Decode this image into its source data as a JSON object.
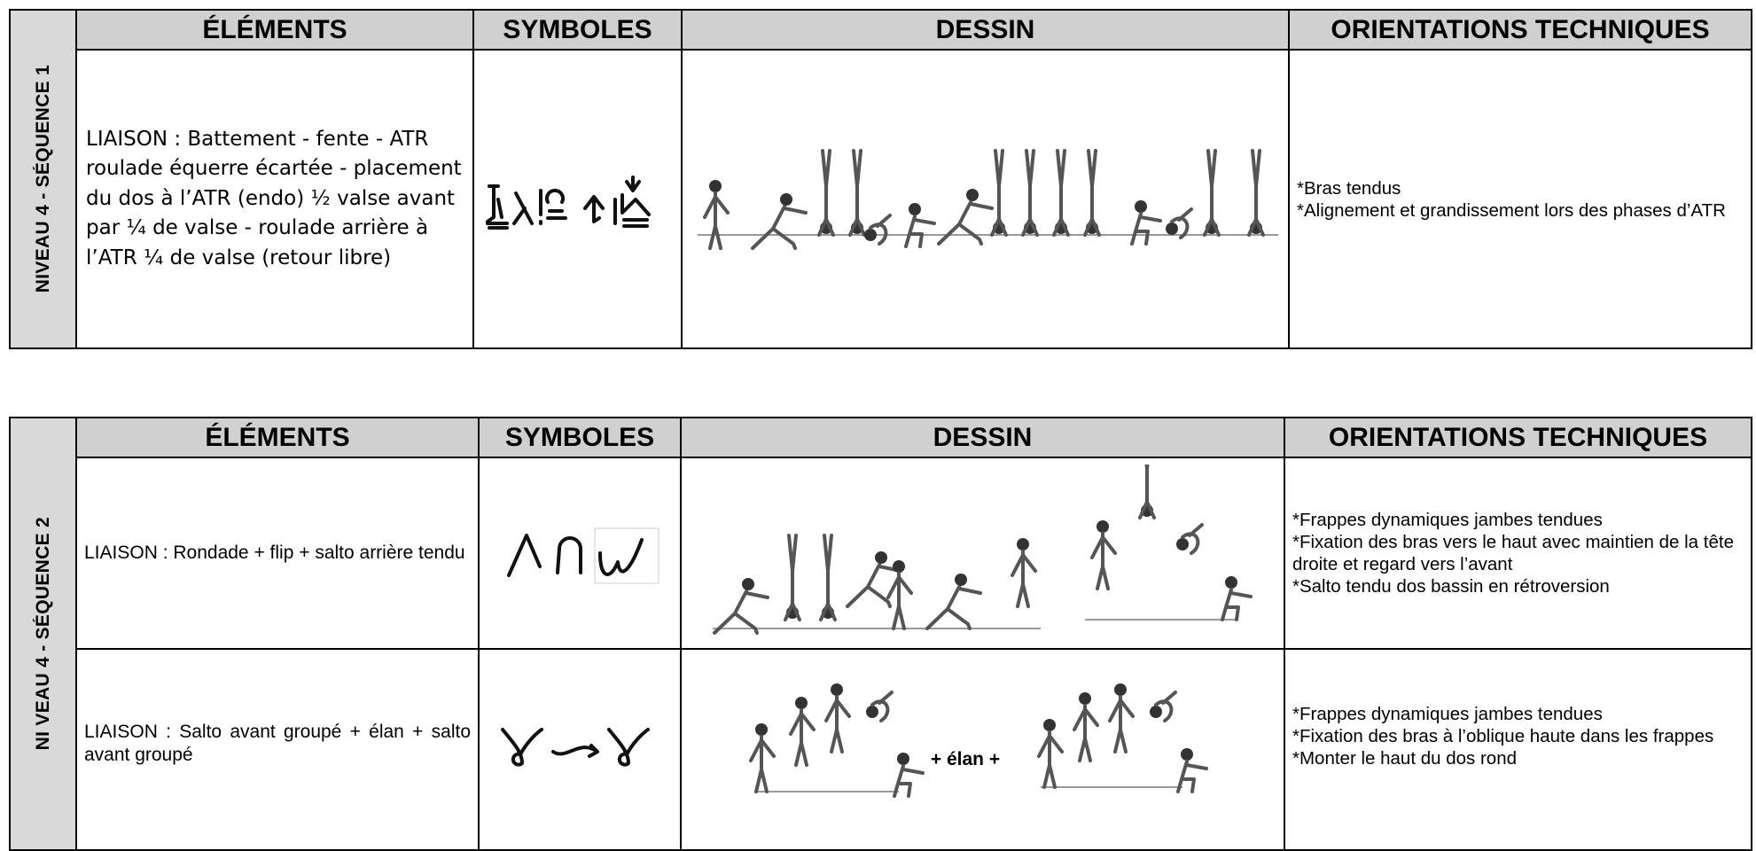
{
  "tables": [
    {
      "side_label": "NIVEAU 4 - SÉQUENCE 1",
      "headers": [
        "ÉLÉMENTS",
        "SYMBOLES",
        "DESSIN",
        "ORIENTATIONS TECHNIQUES"
      ],
      "rows": [
        {
          "elements": "LIAISON : Battement - fente - ATR roulade équerre écartée - placement du dos à l’ATR (endo) ½ valse avant par ¼ de valse - roulade arrière à l’ATR ¼ de valse (retour libre)",
          "orientations": [
            "*Bras tendus",
            "*Alignement et grandissement lors des phases d’ATR"
          ]
        }
      ]
    },
    {
      "side_label": "NI VEAU 4 - SÉQUENCE 2",
      "headers": [
        "ÉLÉMENTS",
        "SYMBOLES",
        "DESSIN",
        "ORIENTATIONS TECHNIQUES"
      ],
      "rows": [
        {
          "elements": "LIAISON : Rondade + flip + salto arrière tendu",
          "orientations": [
            "*Frappes dynamiques jambes tendues",
            "*Fixation des bras vers le haut avec maintien de la tête droite et regard vers l’avant",
            "*Salto tendu dos bassin en rétroversion"
          ]
        },
        {
          "elements": "LIAISON : Salto avant groupé + élan + salto avant groupé",
          "drawing_text": "+ élan +",
          "orientations": [
            "*Frappes dynamiques jambes tendues",
            "*Fixation des bras à l’oblique haute dans les frappes",
            "*Monter le haut du dos rond"
          ]
        }
      ]
    }
  ]
}
